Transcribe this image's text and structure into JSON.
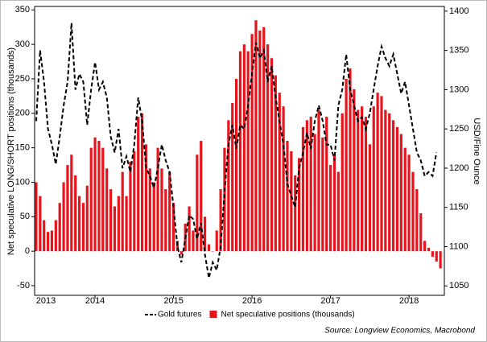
{
  "chart_data": {
    "type": "combo",
    "y_label": "Net speculative LONG/SHORT positions (thousands)",
    "y2_label": "USD/Fine Ounce",
    "source": "Source: Longview Economics, Macrobond",
    "xlim": [
      2013.23,
      2018.45
    ],
    "xticks": [
      2013,
      2014,
      2015,
      2016,
      2017,
      2018
    ],
    "ylim": [
      -64,
      355
    ],
    "yticks": [
      -50,
      0,
      50,
      100,
      150,
      200,
      250,
      300,
      350
    ],
    "y2lim": [
      1038,
      1406
    ],
    "y2ticks": [
      1050,
      1100,
      1150,
      1200,
      1250,
      1300,
      1350,
      1400
    ],
    "x": [
      2013.25,
      2013.3,
      2013.35,
      2013.4,
      2013.45,
      2013.5,
      2013.55,
      2013.6,
      2013.65,
      2013.7,
      2013.75,
      2013.8,
      2013.85,
      2013.9,
      2013.95,
      2014,
      2014.05,
      2014.1,
      2014.15,
      2014.2,
      2014.25,
      2014.3,
      2014.35,
      2014.4,
      2014.45,
      2014.5,
      2014.55,
      2014.6,
      2014.65,
      2014.7,
      2014.75,
      2014.8,
      2014.85,
      2014.9,
      2014.95,
      2015,
      2015.05,
      2015.1,
      2015.15,
      2015.2,
      2015.25,
      2015.3,
      2015.35,
      2015.4,
      2015.45,
      2015.5,
      2015.55,
      2015.6,
      2015.65,
      2015.7,
      2015.75,
      2015.8,
      2015.85,
      2015.9,
      2015.95,
      2016,
      2016.05,
      2016.1,
      2016.15,
      2016.2,
      2016.25,
      2016.3,
      2016.35,
      2016.4,
      2016.45,
      2016.5,
      2016.55,
      2016.6,
      2016.65,
      2016.7,
      2016.75,
      2016.8,
      2016.85,
      2016.9,
      2016.95,
      2017,
      2017.05,
      2017.1,
      2017.15,
      2017.2,
      2017.25,
      2017.3,
      2017.35,
      2017.4,
      2017.45,
      2017.5,
      2017.55,
      2017.6,
      2017.65,
      2017.7,
      2017.75,
      2017.8,
      2017.85,
      2017.9,
      2017.95,
      2018,
      2018.05,
      2018.1,
      2018.15,
      2018.2,
      2018.25,
      2018.3,
      2018.35,
      2018.4
    ],
    "series": [
      {
        "name": "Gold futures",
        "type": "line",
        "axis": "y2",
        "color": "#000000",
        "values": [
          1260,
          1350,
          1310,
          1250,
          1230,
          1205,
          1240,
          1280,
          1310,
          1385,
          1300,
          1320,
          1310,
          1255,
          1300,
          1335,
          1300,
          1310,
          1290,
          1240,
          1220,
          1250,
          1200,
          1215,
          1195,
          1230,
          1290,
          1260,
          1200,
          1190,
          1175,
          1200,
          1230,
          1210,
          1195,
          1150,
          1100,
          1080,
          1110,
          1140,
          1135,
          1110,
          1130,
          1090,
          1060,
          1080,
          1070,
          1100,
          1170,
          1230,
          1255,
          1225,
          1255,
          1250,
          1280,
          1320,
          1360,
          1340,
          1350,
          1310,
          1330,
          1290,
          1260,
          1230,
          1180,
          1165,
          1150,
          1200,
          1220,
          1245,
          1225,
          1260,
          1280,
          1260,
          1230,
          1230,
          1210,
          1280,
          1300,
          1345,
          1300,
          1280,
          1260,
          1265,
          1250,
          1270,
          1300,
          1330,
          1355,
          1340,
          1330,
          1345,
          1320,
          1295,
          1310,
          1280,
          1250,
          1220,
          1210,
          1190,
          1195,
          1190,
          1220,
          null
        ]
      },
      {
        "name": "Net speculative positions (thousands)",
        "type": "bar",
        "color": "#e8141c",
        "values": [
          100,
          80,
          45,
          28,
          30,
          45,
          70,
          100,
          125,
          140,
          110,
          80,
          70,
          95,
          150,
          165,
          160,
          150,
          120,
          90,
          65,
          80,
          115,
          80,
          130,
          145,
          195,
          200,
          155,
          120,
          100,
          150,
          120,
          90,
          115,
          70,
          15,
          -5,
          40,
          65,
          30,
          140,
          160,
          50,
          10,
          0,
          30,
          90,
          150,
          190,
          215,
          250,
          290,
          300,
          290,
          315,
          335,
          320,
          325,
          300,
          280,
          255,
          230,
          210,
          160,
          145,
          110,
          135,
          180,
          190,
          195,
          170,
          205,
          165,
          195,
          125,
          140,
          115,
          200,
          250,
          265,
          235,
          205,
          210,
          195,
          155,
          210,
          230,
          225,
          205,
          200,
          190,
          180,
          170,
          150,
          140,
          115,
          90,
          55,
          15,
          5,
          -8,
          -15,
          -25
        ]
      }
    ]
  }
}
